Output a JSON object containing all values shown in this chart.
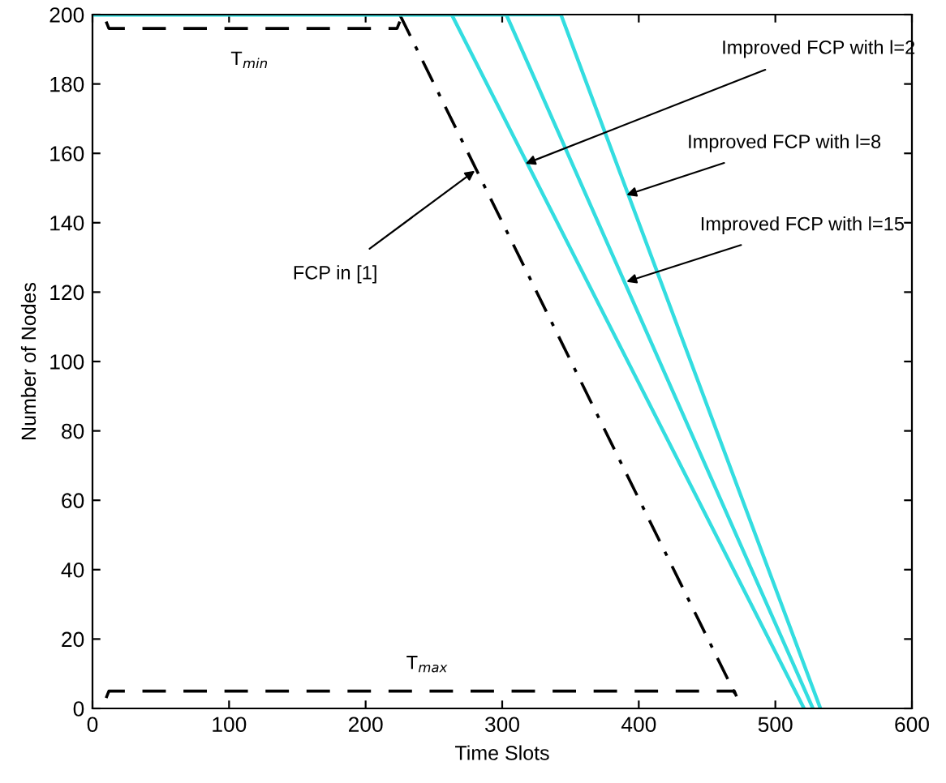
{
  "chart_data": {
    "type": "line",
    "xlabel": "Time Slots",
    "ylabel": "Number of Nodes",
    "xlim": [
      0,
      600
    ],
    "ylim": [
      0,
      200
    ],
    "xticks": [
      0,
      100,
      200,
      300,
      400,
      500,
      600
    ],
    "yticks": [
      0,
      20,
      40,
      60,
      80,
      100,
      120,
      140,
      160,
      180,
      200
    ],
    "grid": false,
    "legend": false,
    "marker": "none",
    "series": [
      {
        "color": "#000000",
        "line_style": "dashdot",
        "x": [
          0,
          225,
          472
        ],
        "values": [
          200,
          200,
          3
        ]
      },
      {
        "color": "#33dde0",
        "line_style": "solid",
        "x": [
          0,
          263,
          521
        ],
        "values": [
          200,
          200,
          0
        ]
      },
      {
        "color": "#33dde0",
        "line_style": "solid",
        "x": [
          0,
          303,
          527.5
        ],
        "values": [
          200,
          200,
          0
        ]
      },
      {
        "color": "#33dde0",
        "line_style": "solid",
        "x": [
          0,
          343,
          533
        ],
        "values": [
          200,
          200,
          0
        ]
      },
      {
        "color": "#000000",
        "line_style": "dashed",
        "x": [
          10,
          12,
          223,
          225
        ],
        "values": [
          198,
          196,
          196,
          198
        ]
      },
      {
        "color": "#000000",
        "line_style": "dashed",
        "x": [
          10,
          12,
          470,
          472
        ],
        "values": [
          3,
          5,
          5,
          3
        ]
      }
    ],
    "annotations": [
      {
        "text": "FCP in [1]",
        "x": 280,
        "y": 155
      },
      {
        "text": "Improved FCP with l=2",
        "x": 317,
        "y": 157
      },
      {
        "text": "Improved FCP with l=8",
        "x": 391,
        "y": 148
      },
      {
        "text": "Improved FCP with l=15",
        "x": 391,
        "y": 123
      },
      {
        "text": "T$_{min}$",
        "x": 115,
        "y": 196
      },
      {
        "text": "T$_{max}$",
        "x": 245,
        "y": 5
      }
    ]
  }
}
